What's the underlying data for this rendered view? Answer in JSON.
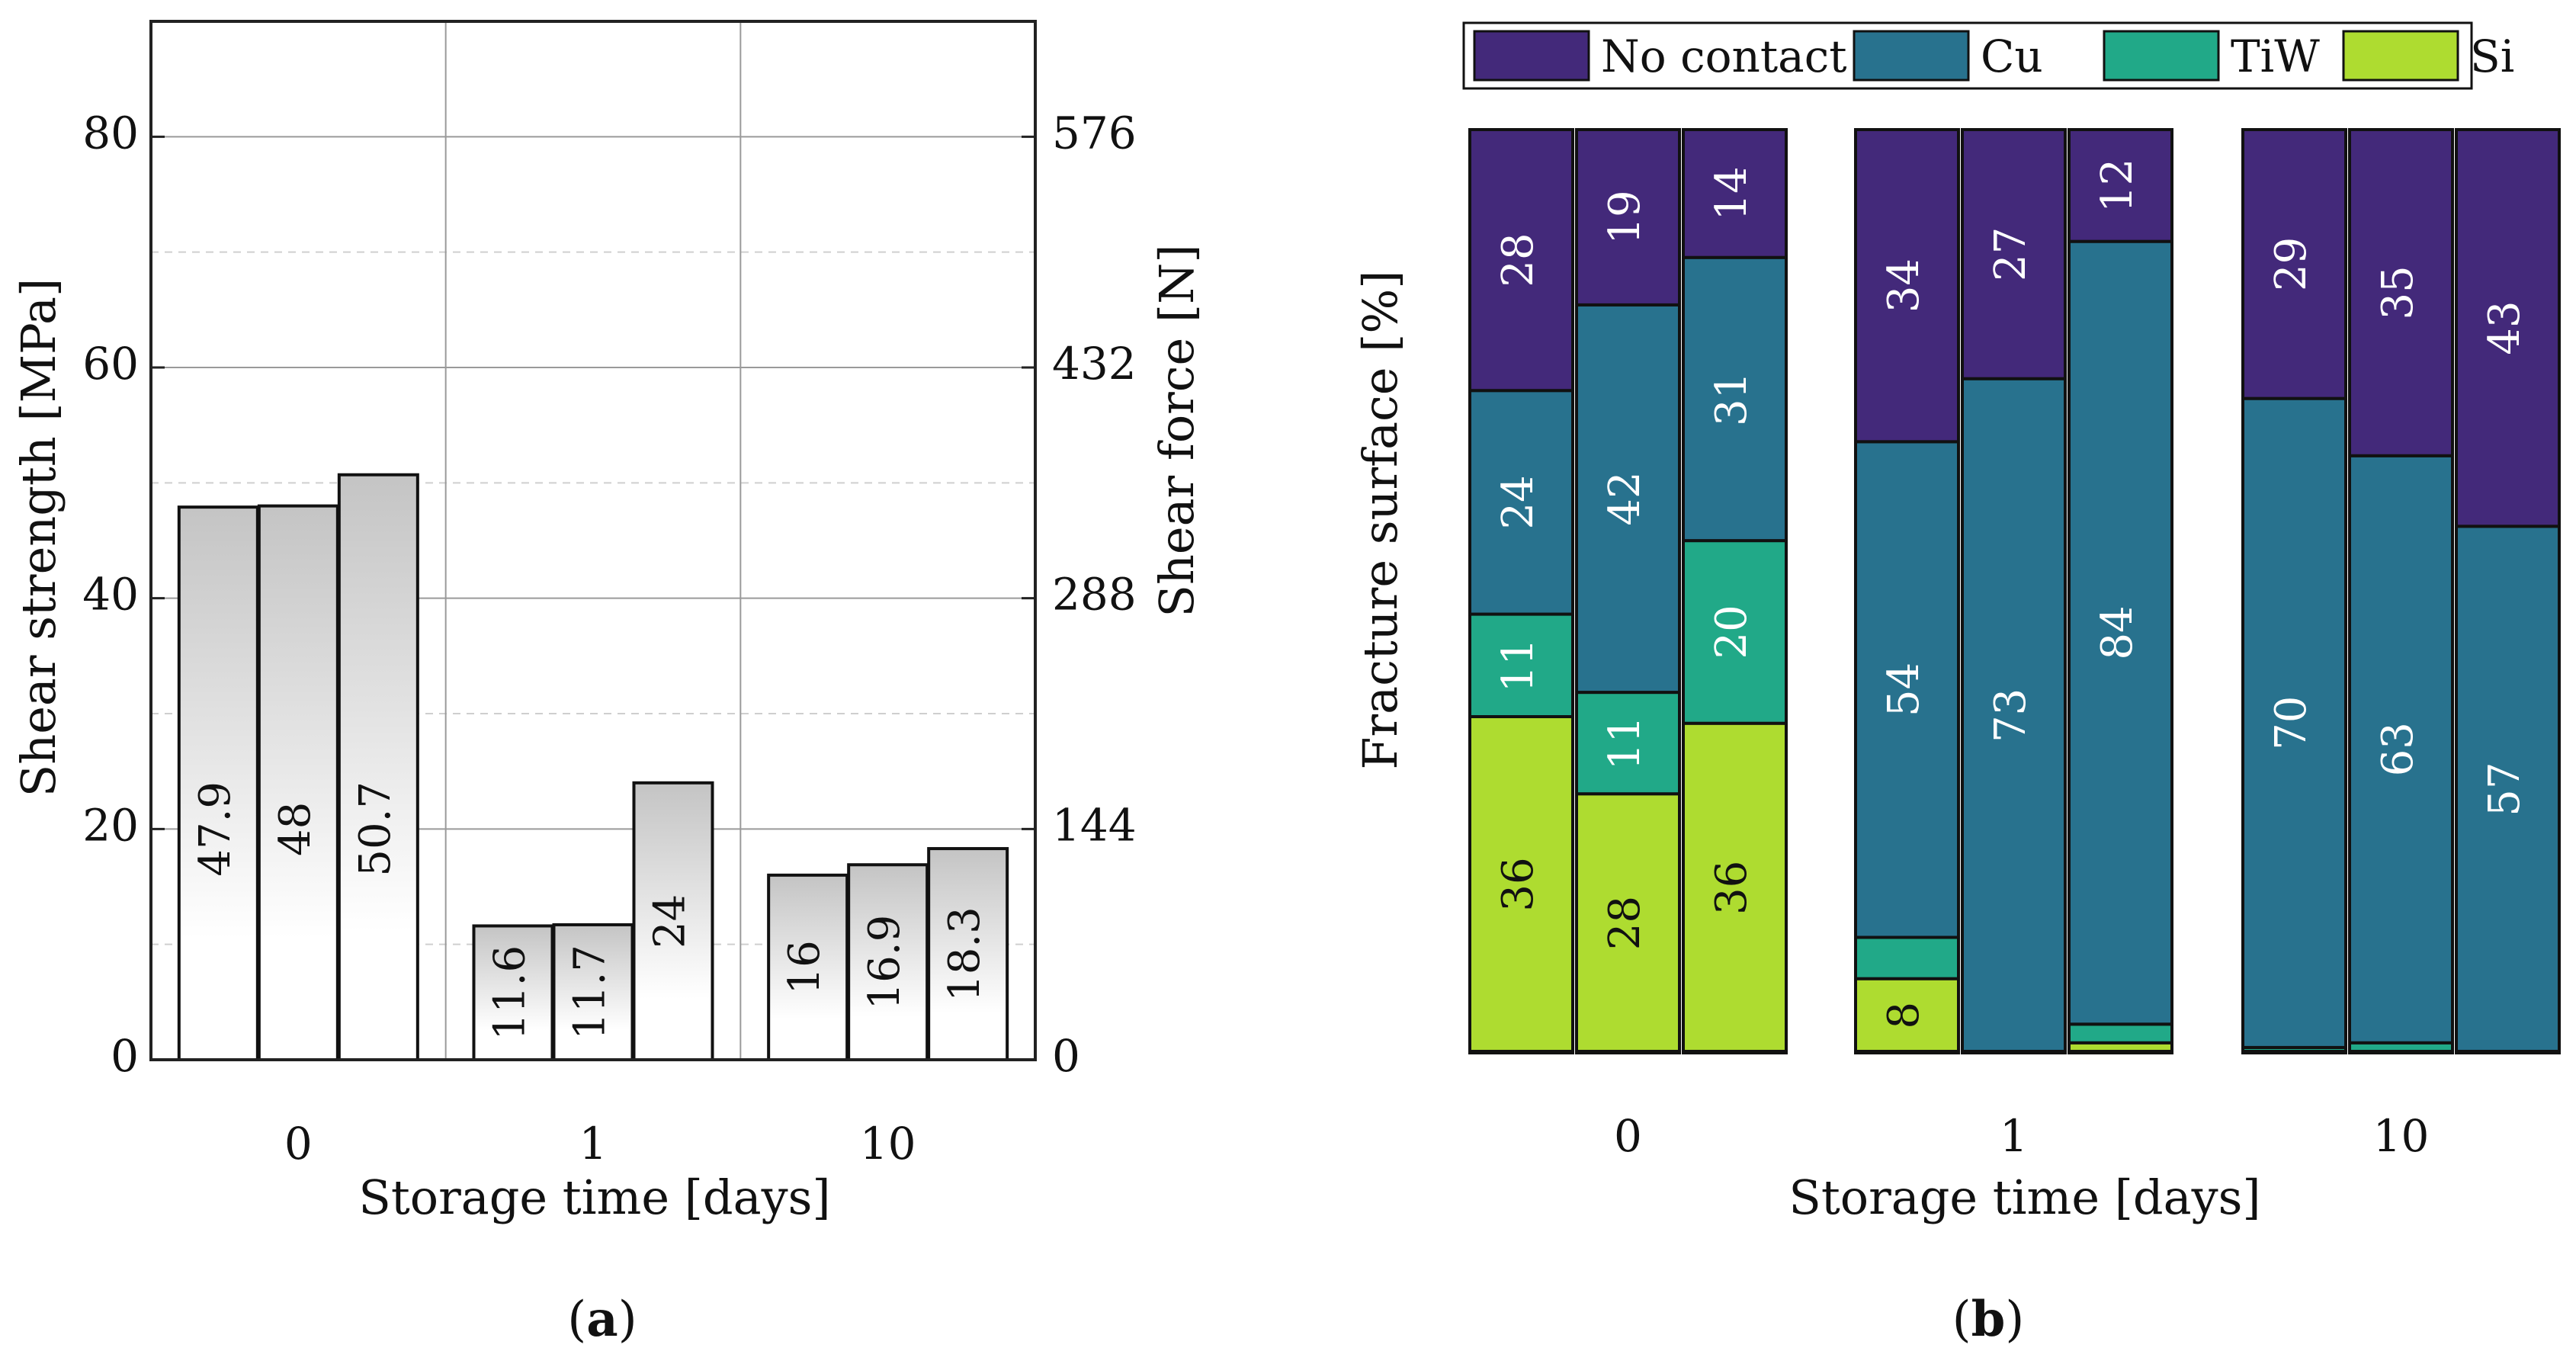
{
  "panel_a": {
    "label_prefix": "(",
    "label_letter": "a",
    "label_suffix": ")"
  },
  "panel_b": {
    "label_prefix": "(",
    "label_letter": "b",
    "label_suffix": ")"
  },
  "colors": {
    "no_contact": "#43297a",
    "cu": "#28728e",
    "tiw": "#21a988",
    "si": "#aedc30",
    "bar_gradient_top": "#c4c4c4",
    "bar_gradient_bottom": "#ffffff"
  },
  "chart_data": [
    {
      "type": "bar",
      "title": "",
      "xlabel": "Storage time [days]",
      "ylabel": "Shear strength [MPa]",
      "y2label": "Shear force [N]",
      "categories": [
        "0",
        "1",
        "10"
      ],
      "bars_per_category": 3,
      "values": [
        [
          47.9,
          48,
          50.7
        ],
        [
          11.6,
          11.7,
          24
        ],
        [
          16,
          16.9,
          18.3
        ]
      ],
      "value_labels": [
        [
          "47.9",
          "48",
          "50.7"
        ],
        [
          "11.6",
          "11.7",
          "24"
        ],
        [
          "16",
          "16.9",
          "18.3"
        ]
      ],
      "ylim": [
        0,
        90
      ],
      "yticks": [
        0,
        20,
        40,
        60,
        80
      ],
      "y2ticks": [
        0,
        144,
        288,
        432,
        576
      ],
      "y2_per_y": 7.2,
      "grid": "major solid, minor dashed"
    },
    {
      "type": "bar",
      "subtype": "stacked-percent",
      "title": "",
      "xlabel": "Storage time [days]",
      "ylabel": "Fracture surface [%]",
      "categories": [
        "0",
        "1",
        "10"
      ],
      "legend": [
        "No contact",
        "Cu",
        "TiW",
        "Si"
      ],
      "legend_position": "top",
      "ylim": [
        0,
        100
      ],
      "series": [
        {
          "name": "Si",
          "values": [
            [
              36,
              28,
              36
            ],
            [
              8,
              0,
              1
            ],
            [
              0,
              0,
              0
            ]
          ]
        },
        {
          "name": "TiW",
          "values": [
            [
              11,
              11,
              20
            ],
            [
              4.5,
              0,
              2
            ],
            [
              0.5,
              1,
              0
            ]
          ]
        },
        {
          "name": "Cu",
          "values": [
            [
              24,
              42,
              31
            ],
            [
              54,
              73,
              84
            ],
            [
              70,
              63,
              57
            ]
          ]
        },
        {
          "name": "No contact",
          "values": [
            [
              28,
              19,
              14
            ],
            [
              34,
              27,
              12
            ],
            [
              29,
              35,
              43
            ]
          ]
        }
      ],
      "segment_labels": {
        "Si": [
          [
            "36",
            "28",
            "36"
          ],
          [
            "8",
            "",
            ""
          ],
          [
            "",
            "",
            ""
          ]
        ],
        "TiW": [
          [
            "11",
            "11",
            "20"
          ],
          [
            "",
            "",
            ""
          ],
          [
            "",
            "",
            ""
          ]
        ],
        "Cu": [
          [
            "24",
            "42",
            "31"
          ],
          [
            "54",
            "73",
            "84"
          ],
          [
            "70",
            "63",
            "57"
          ]
        ],
        "No contact": [
          [
            "28",
            "19",
            "14"
          ],
          [
            "34",
            "27",
            "12"
          ],
          [
            "29",
            "35",
            "43"
          ]
        ]
      }
    }
  ]
}
